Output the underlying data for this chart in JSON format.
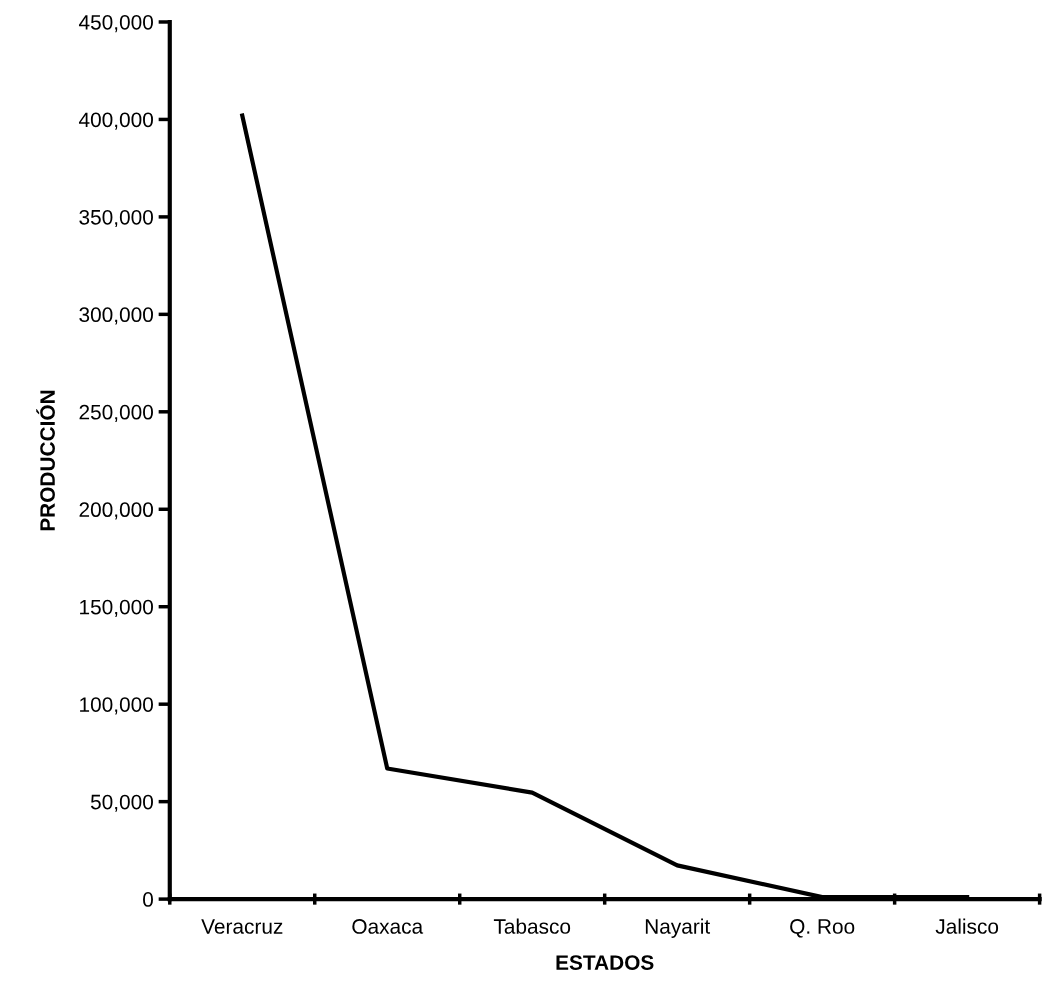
{
  "chart_data": {
    "type": "line",
    "xlabel": "ESTADOS",
    "ylabel": "PRODUCCIÓN",
    "categories": [
      "Veracruz",
      "Oaxaca",
      "Tabasco",
      "Nayarit",
      "Q. Roo",
      "Jalisco"
    ],
    "series": [
      {
        "color": "#000000",
        "values": [
          402000,
          67000,
          54600,
          17300,
          1000,
          1000
        ]
      }
    ],
    "ylim": [
      0,
      450000
    ],
    "yticks": [
      {
        "value": 0,
        "label": "0"
      },
      {
        "value": 50000,
        "label": "50,000"
      },
      {
        "value": 100000,
        "label": "100,000"
      },
      {
        "value": 150000,
        "label": "150,000"
      },
      {
        "value": 200000,
        "label": "200,000"
      },
      {
        "value": 250000,
        "label": "250,000"
      },
      {
        "value": 300000,
        "label": "300,000"
      },
      {
        "value": 350000,
        "label": "350,000"
      },
      {
        "value": 400000,
        "label": "400,000"
      },
      {
        "value": 450000,
        "label": "450,000"
      }
    ],
    "grid": false,
    "legend": false,
    "marker": "none",
    "line_style": "solid"
  }
}
